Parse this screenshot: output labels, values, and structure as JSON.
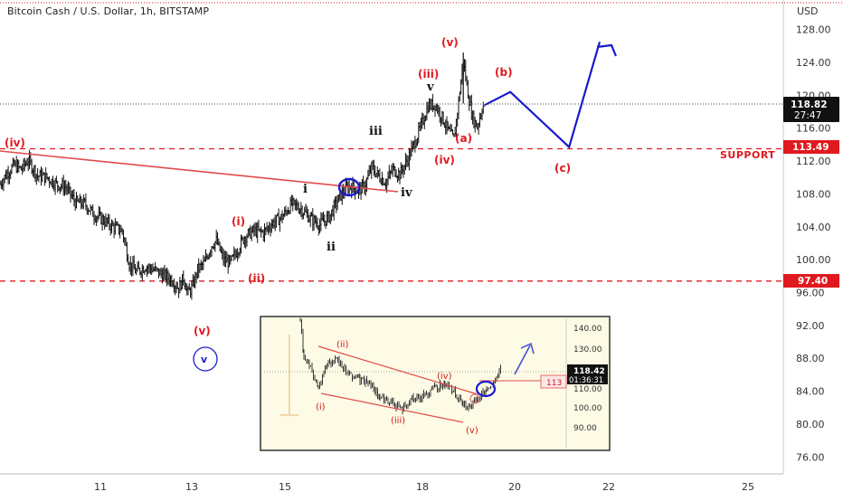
{
  "header": {
    "title": "Bitcoin Cash / U.S. Dollar, 1h, BITSTAMP"
  },
  "chart_data": {
    "type": "candlestick",
    "symbol": "Bitcoin Cash / U.S. Dollar",
    "timeframe": "1h",
    "exchange": "BITSTAMP",
    "currency": "USD",
    "ylim": [
      74,
      130
    ],
    "y_ticks": [
      "128.00",
      "124.00",
      "120.00",
      "116.00",
      "112.00",
      "108.00",
      "104.00",
      "100.00",
      "96.00",
      "92.00",
      "88.00",
      "84.00",
      "80.00",
      "76.00"
    ],
    "x_ticks": [
      "11",
      "13",
      "15",
      "18",
      "20",
      "22",
      "25"
    ],
    "last_price": "118.82",
    "countdown": "27:47",
    "levels": [
      {
        "value": 113.49,
        "label": "113.49",
        "note": "SUPPORT",
        "color": "#e0191e"
      },
      {
        "value": 97.4,
        "label": "97.40",
        "note": "",
        "color": "#e0191e"
      }
    ],
    "wave_labels_red": [
      "(iv)",
      "(v)",
      "(i)",
      "(ii)",
      "(iii)",
      "(iv)",
      "(v)",
      "(a)",
      "(b)",
      "(c)"
    ],
    "wave_labels_black": [
      "i",
      "ii",
      "iii",
      "iv",
      "v"
    ],
    "blue_circle_label": "v",
    "price_path": [
      {
        "t": 0,
        "p": 109.2
      },
      {
        "t": 3,
        "p": 110.5
      },
      {
        "t": 6,
        "p": 111.5
      },
      {
        "t": 9,
        "p": 111.0
      },
      {
        "t": 12,
        "p": 112.1
      },
      {
        "t": 16,
        "p": 110.2
      },
      {
        "t": 20,
        "p": 110.0
      },
      {
        "t": 24,
        "p": 109.2
      },
      {
        "t": 28,
        "p": 108.8
      },
      {
        "t": 32,
        "p": 107.0
      },
      {
        "t": 36,
        "p": 106.8
      },
      {
        "t": 40,
        "p": 105.5
      },
      {
        "t": 44,
        "p": 104.8
      },
      {
        "t": 48,
        "p": 104.0
      },
      {
        "t": 52,
        "p": 103.5
      },
      {
        "t": 55,
        "p": 99.5
      },
      {
        "t": 58,
        "p": 98.5
      },
      {
        "t": 62,
        "p": 99.2
      },
      {
        "t": 66,
        "p": 98.7
      },
      {
        "t": 70,
        "p": 98.0
      },
      {
        "t": 73,
        "p": 97.6
      },
      {
        "t": 76,
        "p": 96.5
      },
      {
        "t": 78,
        "p": 97.8
      },
      {
        "t": 80,
        "p": 95.9
      },
      {
        "t": 82,
        "p": 96.8
      },
      {
        "t": 84,
        "p": 98.8
      },
      {
        "t": 87,
        "p": 99.6
      },
      {
        "t": 90,
        "p": 101.8
      },
      {
        "t": 92,
        "p": 102.3
      },
      {
        "t": 95,
        "p": 100.0
      },
      {
        "t": 98,
        "p": 99.6
      },
      {
        "t": 101,
        "p": 101.2
      },
      {
        "t": 104,
        "p": 102.8
      },
      {
        "t": 108,
        "p": 103.5
      },
      {
        "t": 112,
        "p": 103.3
      },
      {
        "t": 116,
        "p": 104.5
      },
      {
        "t": 120,
        "p": 105.2
      },
      {
        "t": 124,
        "p": 106.8
      },
      {
        "t": 128,
        "p": 106.2
      },
      {
        "t": 132,
        "p": 105.0
      },
      {
        "t": 136,
        "p": 104.3
      },
      {
        "t": 140,
        "p": 105.2
      },
      {
        "t": 143,
        "p": 106.9
      },
      {
        "t": 146,
        "p": 108.3
      },
      {
        "t": 149,
        "p": 109.0
      },
      {
        "t": 152,
        "p": 108.4
      },
      {
        "t": 155,
        "p": 108.9
      },
      {
        "t": 158,
        "p": 111.2
      },
      {
        "t": 161,
        "p": 110.2
      },
      {
        "t": 164,
        "p": 109.4
      },
      {
        "t": 167,
        "p": 111.0
      },
      {
        "t": 170,
        "p": 110.4
      },
      {
        "t": 173,
        "p": 112.0
      },
      {
        "t": 176,
        "p": 114.0
      },
      {
        "t": 179,
        "p": 116.2
      },
      {
        "t": 182,
        "p": 118.7
      },
      {
        "t": 185,
        "p": 118.9
      },
      {
        "t": 188,
        "p": 117.3
      },
      {
        "t": 191,
        "p": 115.5
      },
      {
        "t": 193,
        "p": 114.6
      },
      {
        "t": 195,
        "p": 119.2
      },
      {
        "t": 197,
        "p": 124.2
      },
      {
        "t": 199,
        "p": 120.2
      },
      {
        "t": 201,
        "p": 117.2
      },
      {
        "t": 203,
        "p": 116.2
      },
      {
        "t": 205,
        "p": 118.5
      },
      {
        "t": 206,
        "p": 118.8
      }
    ],
    "projection_path": [
      {
        "t": 206,
        "p": 118.8
      },
      {
        "t": 217,
        "p": 120.4
      },
      {
        "t": 242,
        "p": 113.7
      },
      {
        "t": 255,
        "p": 126.5
      }
    ],
    "inset": {
      "y_ticks": [
        "140.00",
        "130.00",
        "110.00",
        "100.00",
        "90.00"
      ],
      "last_price": "118.42",
      "countdown": "01:36:31",
      "level_label": "113",
      "labels_red": [
        "(ii)",
        "(i)",
        "(iii)",
        "(iv)",
        "(v)"
      ]
    },
    "colors": {
      "support": "#e0191e",
      "projection": "#1a1acc",
      "trendline": "#e24b4b",
      "candles": "#111111",
      "inset_bg": "#fdfbe5"
    }
  }
}
